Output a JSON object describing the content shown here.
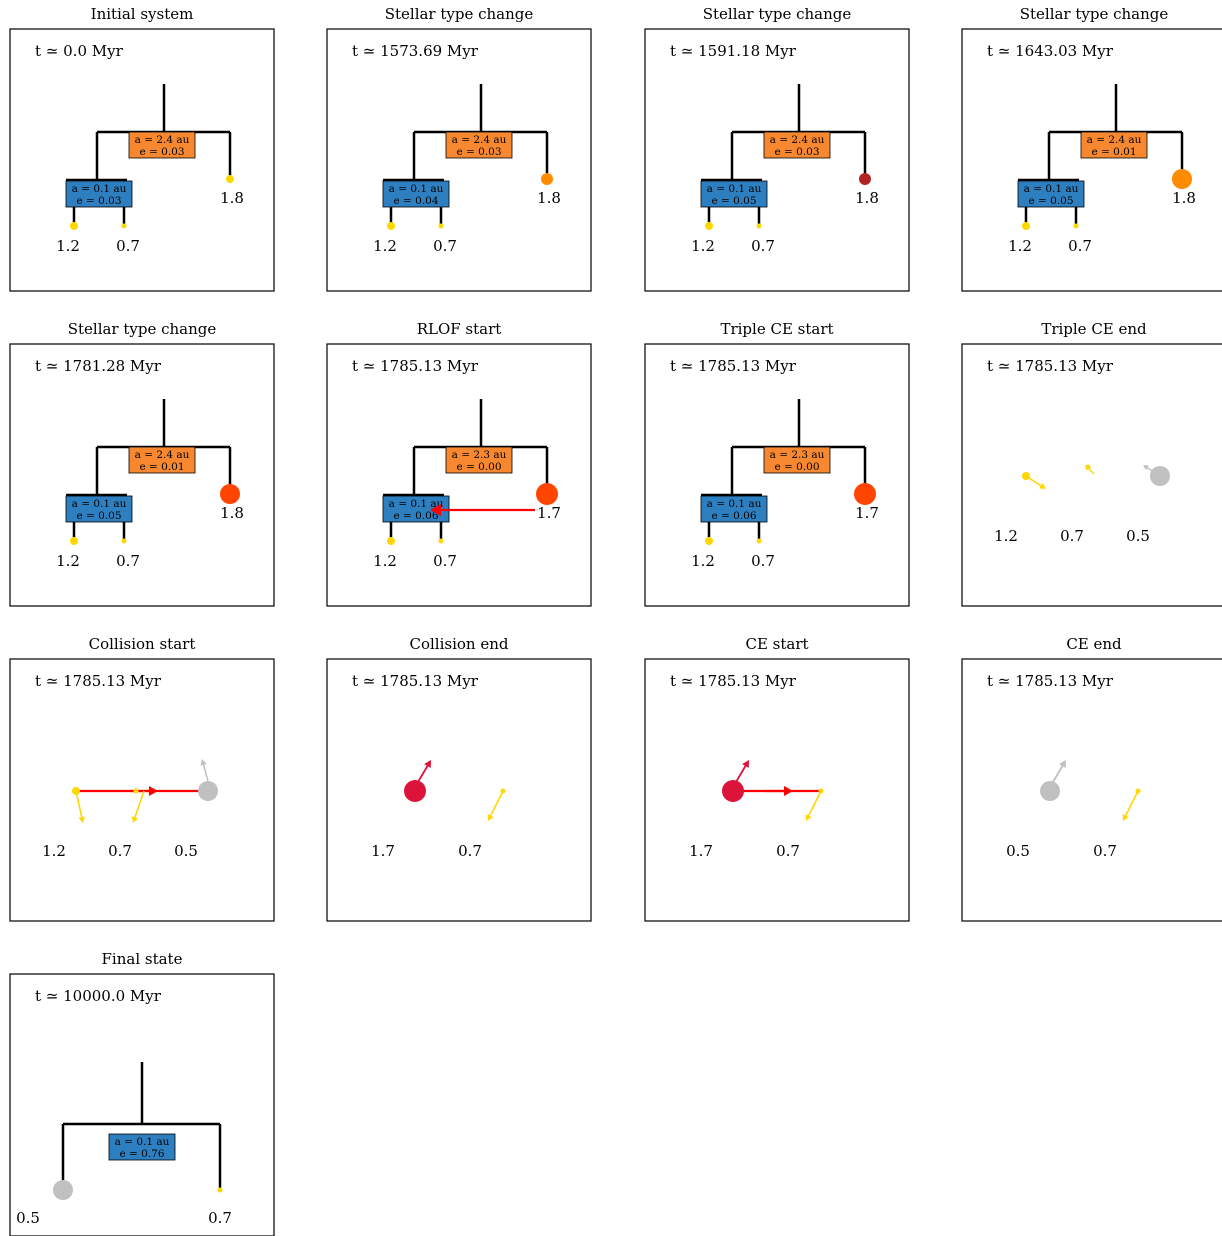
{
  "figure": {
    "panels": [
      {
        "title": "Initial system",
        "time": "t ≃ 0.0 Myr",
        "kind": "tree",
        "outer": {
          "a": "a = 2.4 au",
          "e": "e = 0.03",
          "color": "#f7882f"
        },
        "inner": {
          "a": "a = 0.1 au",
          "e": "e = 0.03",
          "color": "#2e7fc0"
        },
        "stars": [
          {
            "mass": "1.2",
            "color": "#ffd700",
            "size": "small"
          },
          {
            "mass": "0.7",
            "color": "#ffd700",
            "size": "tiny"
          },
          {
            "mass": "1.8",
            "color": "#ffd700",
            "size": "small"
          }
        ]
      },
      {
        "title": "Stellar type change",
        "time": "t ≃ 1573.69 Myr",
        "kind": "tree",
        "outer": {
          "a": "a = 2.4 au",
          "e": "e = 0.03",
          "color": "#f7882f"
        },
        "inner": {
          "a": "a = 0.1 au",
          "e": "e = 0.04",
          "color": "#2e7fc0"
        },
        "stars": [
          {
            "mass": "1.2",
            "color": "#ffd700",
            "size": "small"
          },
          {
            "mass": "0.7",
            "color": "#ffd700",
            "size": "tiny"
          },
          {
            "mass": "1.8",
            "color": "#ff8c00",
            "size": "medium"
          }
        ]
      },
      {
        "title": "Stellar type change",
        "time": "t ≃ 1591.18 Myr",
        "kind": "tree",
        "outer": {
          "a": "a = 2.4 au",
          "e": "e = 0.03",
          "color": "#f7882f"
        },
        "inner": {
          "a": "a = 0.1 au",
          "e": "e = 0.05",
          "color": "#2e7fc0"
        },
        "stars": [
          {
            "mass": "1.2",
            "color": "#ffd700",
            "size": "small"
          },
          {
            "mass": "0.7",
            "color": "#ffd700",
            "size": "tiny"
          },
          {
            "mass": "1.8",
            "color": "#b22222",
            "size": "medium"
          }
        ]
      },
      {
        "title": "Stellar type change",
        "time": "t ≃ 1643.03 Myr",
        "kind": "tree",
        "outer": {
          "a": "a = 2.4 au",
          "e": "e = 0.01",
          "color": "#f7882f"
        },
        "inner": {
          "a": "a = 0.1 au",
          "e": "e = 0.05",
          "color": "#2e7fc0"
        },
        "stars": [
          {
            "mass": "1.2",
            "color": "#ffd700",
            "size": "small"
          },
          {
            "mass": "0.7",
            "color": "#ffd700",
            "size": "tiny"
          },
          {
            "mass": "1.8",
            "color": "#ff8c00",
            "size": "large"
          }
        ]
      },
      {
        "title": "Stellar type change",
        "time": "t ≃ 1781.28 Myr",
        "kind": "tree",
        "outer": {
          "a": "a = 2.4 au",
          "e": "e = 0.01",
          "color": "#f7882f"
        },
        "inner": {
          "a": "a = 0.1 au",
          "e": "e = 0.05",
          "color": "#2e7fc0"
        },
        "stars": [
          {
            "mass": "1.2",
            "color": "#ffd700",
            "size": "small"
          },
          {
            "mass": "0.7",
            "color": "#ffd700",
            "size": "tiny"
          },
          {
            "mass": "1.8",
            "color": "#ff4500",
            "size": "large"
          }
        ]
      },
      {
        "title": "RLOF start",
        "time": "t ≃ 1785.13 Myr",
        "kind": "tree",
        "rlof": true,
        "outer": {
          "a": "a = 2.3 au",
          "e": "e = 0.00",
          "color": "#f7882f"
        },
        "inner": {
          "a": "a = 0.1 au",
          "e": "e = 0.06",
          "color": "#2e7fc0"
        },
        "stars": [
          {
            "mass": "1.2",
            "color": "#ffd700",
            "size": "small"
          },
          {
            "mass": "0.7",
            "color": "#ffd700",
            "size": "tiny"
          },
          {
            "mass": "1.7",
            "color": "#ff4500",
            "size": "xlarge"
          }
        ]
      },
      {
        "title": "Triple CE start",
        "time": "t ≃ 1785.13 Myr",
        "kind": "tree",
        "outer": {
          "a": "a = 2.3 au",
          "e": "e = 0.00",
          "color": "#f7882f"
        },
        "inner": {
          "a": "a = 0.1 au",
          "e": "e = 0.06",
          "color": "#2e7fc0"
        },
        "stars": [
          {
            "mass": "1.2",
            "color": "#ffd700",
            "size": "small"
          },
          {
            "mass": "0.7",
            "color": "#ffd700",
            "size": "tiny"
          },
          {
            "mass": "1.7",
            "color": "#ff4500",
            "size": "xlarge"
          }
        ]
      },
      {
        "title": "Triple CE end",
        "time": "t ≃ 1785.13 Myr",
        "kind": "free",
        "stars": [
          {
            "mass": "1.2",
            "color": "#ffd700",
            "size": "small"
          },
          {
            "mass": "0.7",
            "color": "#ffd700",
            "size": "tiny"
          },
          {
            "mass": "0.5",
            "color": "#c0c0c0",
            "size": "large"
          }
        ]
      },
      {
        "title": "Collision start",
        "time": "t ≃ 1785.13 Myr",
        "kind": "free",
        "stars": [
          {
            "mass": "1.2",
            "color": "#ffd700",
            "size": "small"
          },
          {
            "mass": "0.7",
            "color": "#ffd700",
            "size": "tiny"
          },
          {
            "mass": "0.5",
            "color": "#c0c0c0",
            "size": "large"
          }
        ]
      },
      {
        "title": "Collision end",
        "time": "t ≃ 1785.13 Myr",
        "kind": "free",
        "stars": [
          {
            "mass": "1.7",
            "color": "#dc143c",
            "size": "xlarge"
          },
          {
            "mass": "0.7",
            "color": "#ffd700",
            "size": "tiny"
          }
        ]
      },
      {
        "title": "CE start",
        "time": "t ≃ 1785.13 Myr",
        "kind": "free",
        "stars": [
          {
            "mass": "1.7",
            "color": "#dc143c",
            "size": "xlarge"
          },
          {
            "mass": "0.7",
            "color": "#ffd700",
            "size": "tiny"
          }
        ]
      },
      {
        "title": "CE end",
        "time": "t ≃ 1785.13 Myr",
        "kind": "free",
        "stars": [
          {
            "mass": "0.5",
            "color": "#c0c0c0",
            "size": "large"
          },
          {
            "mass": "0.7",
            "color": "#ffd700",
            "size": "tiny"
          }
        ]
      },
      {
        "title": "Final state",
        "time": "t ≃ 10000.0 Myr",
        "kind": "binary",
        "orbit": {
          "a": "a = 0.1 au",
          "e": "e = 0.76",
          "color": "#2e7fc0"
        },
        "stars": [
          {
            "mass": "0.5",
            "color": "#c0c0c0",
            "size": "large"
          },
          {
            "mass": "0.7",
            "color": "#ffd700",
            "size": "tiny"
          }
        ]
      }
    ]
  }
}
